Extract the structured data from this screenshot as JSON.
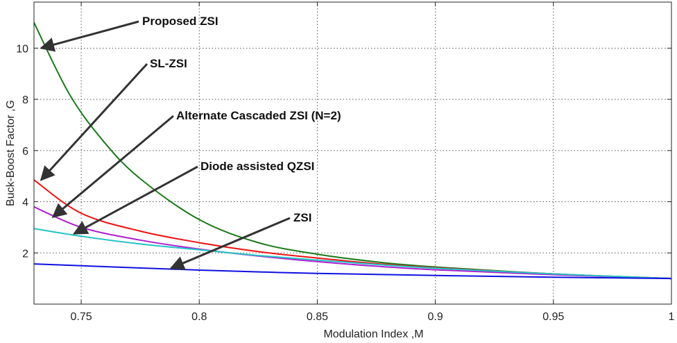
{
  "chart_data": {
    "type": "line",
    "title": "",
    "xlabel": "Modulation Index ,M",
    "ylabel": "Buck-Boost Factor ,G",
    "xlim": [
      0.73,
      1.0
    ],
    "ylim": [
      0,
      11.8
    ],
    "xticks": [
      0.75,
      0.8,
      0.85,
      0.9,
      0.95,
      1
    ],
    "xtick_labels": [
      "0.75",
      "0.8",
      "0.85",
      "0.9",
      "0.95",
      "1"
    ],
    "yticks": [
      2,
      4,
      6,
      8,
      10
    ],
    "ytick_labels": [
      "2",
      "4",
      "6",
      "8",
      "10"
    ],
    "grid": true,
    "legend": "annotations with arrows",
    "series": [
      {
        "name": "Proposed ZSI",
        "color": "#1a7a1a",
        "x": [
          0.73,
          0.745,
          0.76,
          0.775,
          0.8,
          0.825,
          0.85,
          0.875,
          0.9,
          0.95,
          1.0
        ],
        "y": [
          11.0,
          8.2,
          6.3,
          4.9,
          3.3,
          2.4,
          1.95,
          1.65,
          1.45,
          1.18,
          1.0
        ]
      },
      {
        "name": "SL-ZSI",
        "color": "#ee1111",
        "x": [
          0.73,
          0.75,
          0.775,
          0.8,
          0.825,
          0.85,
          0.875,
          0.9,
          0.95,
          1.0
        ],
        "y": [
          4.85,
          3.55,
          2.85,
          2.4,
          2.05,
          1.8,
          1.58,
          1.42,
          1.18,
          1.0
        ]
      },
      {
        "name": "Alternate Cascaded ZSI (N=2)",
        "color": "#b01fcf",
        "x": [
          0.73,
          0.75,
          0.775,
          0.8,
          0.825,
          0.85,
          0.875,
          0.9,
          0.95,
          1.0
        ],
        "y": [
          3.8,
          3.0,
          2.5,
          2.15,
          1.88,
          1.66,
          1.48,
          1.34,
          1.15,
          1.0
        ]
      },
      {
        "name": "Diode assisted QZSI",
        "color": "#22c4c4",
        "x": [
          0.73,
          0.75,
          0.775,
          0.8,
          0.825,
          0.85,
          0.875,
          0.9,
          0.95,
          1.0
        ],
        "y": [
          2.95,
          2.65,
          2.35,
          2.12,
          1.9,
          1.72,
          1.55,
          1.4,
          1.18,
          1.0
        ]
      },
      {
        "name": "ZSI",
        "color": "#1010e0",
        "x": [
          0.73,
          0.8,
          0.85,
          0.9,
          0.95,
          1.0
        ],
        "y": [
          1.57,
          1.33,
          1.2,
          1.12,
          1.05,
          1.0
        ]
      }
    ],
    "annotations": [
      {
        "text": "Proposed ZSI",
        "point": [
          0.733,
          10.0
        ]
      },
      {
        "text": "SL-ZSI",
        "point": [
          0.733,
          4.85
        ]
      },
      {
        "text": "Alternate Cascaded ZSI (N=2)",
        "point": [
          0.738,
          3.4
        ]
      },
      {
        "text": "Diode assisted QZSI",
        "point": [
          0.747,
          2.75
        ]
      },
      {
        "text": "ZSI",
        "point": [
          0.788,
          1.4
        ]
      }
    ]
  }
}
